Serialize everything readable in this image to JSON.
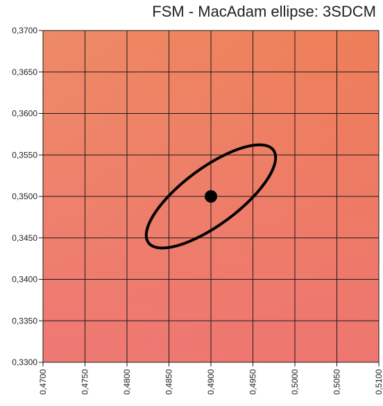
{
  "chart_data": {
    "type": "scatter",
    "title": "FSM - MacAdam ellipse: 3SDCM",
    "xlabel": "",
    "ylabel": "",
    "xlim": [
      0.47,
      0.51
    ],
    "ylim": [
      0.33,
      0.37
    ],
    "x_ticks": [
      "0,4700",
      "0,4750",
      "0,4800",
      "0,4850",
      "0,4900",
      "0,4950",
      "0,5000",
      "0,5050",
      "0,5100"
    ],
    "y_ticks": [
      "0,3700",
      "0,3650",
      "0,3600",
      "0,3550",
      "0,3500",
      "0,3450",
      "0,3400",
      "0,3350",
      "0,3300"
    ],
    "grid": true,
    "center_point": {
      "x": 0.49,
      "y": 0.35
    },
    "ellipse": {
      "center": {
        "x": 0.49,
        "y": 0.35
      },
      "semi_major": 0.0093,
      "semi_minor": 0.0034,
      "rotation_deg": 37
    },
    "colors": {
      "background_top_left": "#ee8a66",
      "background_top_right": "#ee7e58",
      "background_bottom_left": "#ee7575",
      "background_bottom_right": "#e86e68",
      "grid": "#1a1a1a",
      "ellipse": "#000000",
      "point": "#000000"
    }
  }
}
